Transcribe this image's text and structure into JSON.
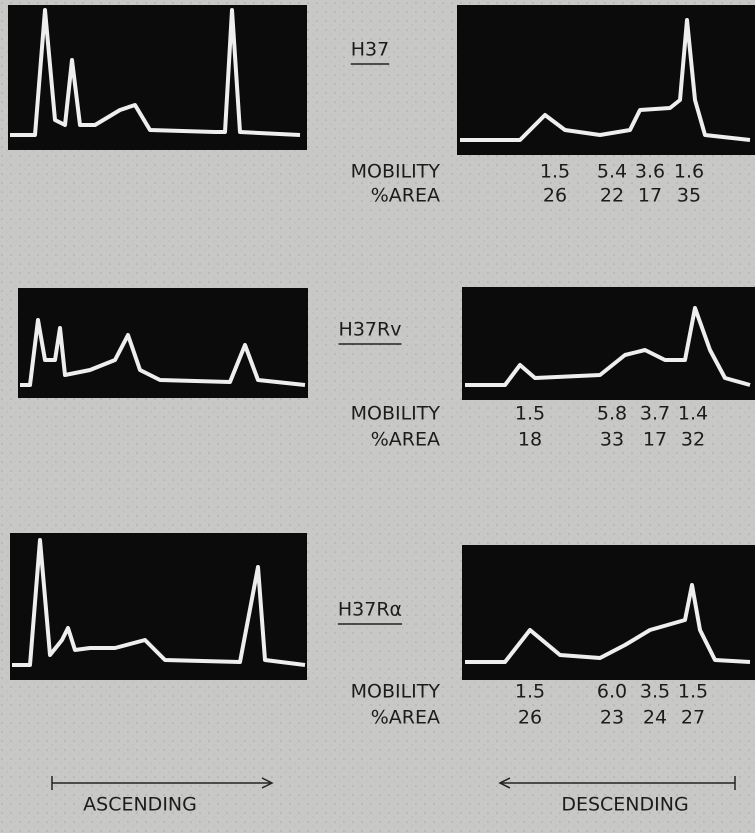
{
  "panels": [
    {
      "label": "H37",
      "mobility_label": "MOBILITY",
      "area_label": "%AREA",
      "mobility": [
        "1.5",
        "5.4",
        "3.6",
        "1.6"
      ],
      "area": [
        "26",
        "22",
        "17",
        "35"
      ]
    },
    {
      "label": "H37Rv",
      "mobility_label": "MOBILITY",
      "area_label": "%AREA",
      "mobility": [
        "1.5",
        "5.8",
        "3.7",
        "1.4"
      ],
      "area": [
        "18",
        "33",
        "17",
        "32"
      ]
    },
    {
      "label": "H37Rα",
      "mobility_label": "MOBILITY",
      "area_label": "%AREA",
      "mobility": [
        "1.5",
        "6.0",
        "3.5",
        "1.5"
      ],
      "area": [
        "26",
        "23",
        "24",
        "27"
      ]
    }
  ],
  "ascending": "ASCENDING",
  "descending": "DESCENDING"
}
